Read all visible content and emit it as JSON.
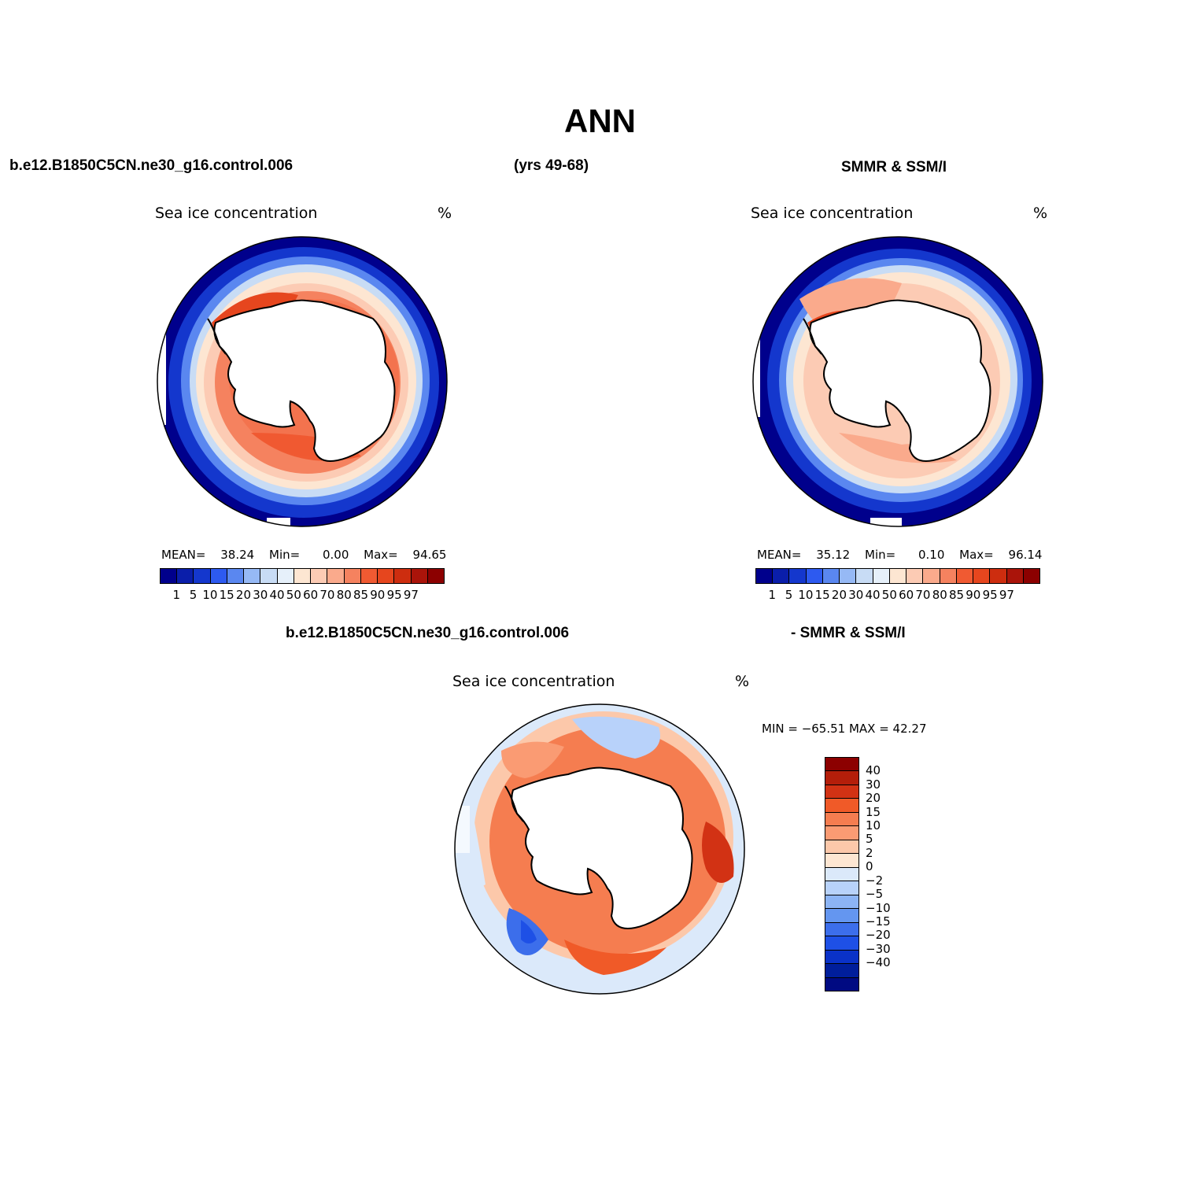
{
  "page_title": "ANN",
  "header": {
    "case_name": "b.e12.B1850C5CN.ne30_g16.control.006",
    "years": "(yrs 49-68)",
    "obs_name": "SMMR & SSM/I"
  },
  "panels": {
    "model": {
      "title": "Sea ice concentration",
      "unit": "%",
      "stats": {
        "mean_label": "MEAN=",
        "mean": "38.24",
        "min_label": "Min=",
        "min": "0.00",
        "max_label": "Max=",
        "max": "94.65"
      }
    },
    "obs": {
      "title": "Sea ice concentration",
      "unit": "%",
      "stats": {
        "mean_label": "MEAN=",
        "mean": "35.12",
        "min_label": "Min=",
        "min": "0.10",
        "max_label": "Max=",
        "max": "96.14"
      }
    },
    "diff": {
      "header_left": "b.e12.B1850C5CN.ne30_g16.control.006",
      "header_right": "- SMMR & SSM/I",
      "title": "Sea ice concentration",
      "unit": "%",
      "minmax": "MIN = −65.51  MAX =   42.27"
    }
  },
  "colorbar_abs": {
    "colors": [
      "#00008c",
      "#0a1eaa",
      "#1437cd",
      "#2d5af0",
      "#5a87f0",
      "#96b9f5",
      "#c8dcf5",
      "#e6f0fa",
      "#fde6d2",
      "#fccbb4",
      "#faaa8c",
      "#f5825f",
      "#f05a32",
      "#e6461e",
      "#cd2d0f",
      "#aa140a",
      "#8c0000"
    ],
    "ticks": [
      "1",
      "5",
      "10",
      "15",
      "20",
      "30",
      "40",
      "50",
      "60",
      "70",
      "80",
      "85",
      "90",
      "95",
      "97"
    ]
  },
  "colorbar_diff": {
    "colors": [
      "#8c0000",
      "#b41e0a",
      "#d23214",
      "#f05a28",
      "#f57d50",
      "#fa9b73",
      "#fcc8aa",
      "#fde6d2",
      "#dbe9fa",
      "#b8d2fa",
      "#8cb4f5",
      "#6496f0",
      "#3c6eeb",
      "#1e50e6",
      "#0a32c8",
      "#001e9b",
      "#000a82"
    ],
    "ticks": [
      "40",
      "30",
      "20",
      "15",
      "10",
      "5",
      "2",
      "0",
      "−2",
      "−5",
      "−10",
      "−15",
      "−20",
      "−30",
      "−40"
    ]
  },
  "chart_data": [
    {
      "type": "heatmap",
      "title": "Sea ice concentration",
      "projection": "south-polar-stereographic",
      "units": "%",
      "contour_levels": [
        1,
        5,
        10,
        15,
        20,
        30,
        40,
        50,
        60,
        70,
        80,
        85,
        90,
        95,
        97
      ],
      "stats": {
        "mean": 38.24,
        "min": 0.0,
        "max": 94.65
      }
    },
    {
      "type": "heatmap",
      "title": "Sea ice concentration",
      "projection": "south-polar-stereographic",
      "units": "%",
      "contour_levels": [
        1,
        5,
        10,
        15,
        20,
        30,
        40,
        50,
        60,
        70,
        80,
        85,
        90,
        95,
        97
      ],
      "stats": {
        "mean": 35.12,
        "min": 0.1,
        "max": 96.14
      }
    },
    {
      "type": "heatmap",
      "title": "Sea ice concentration",
      "projection": "south-polar-stereographic",
      "units": "%",
      "contour_levels": [
        40,
        30,
        20,
        15,
        10,
        5,
        2,
        0,
        -2,
        -5,
        -10,
        -15,
        -20,
        -30,
        -40
      ],
      "stats": {
        "min": -65.51,
        "max": 42.27
      }
    }
  ]
}
